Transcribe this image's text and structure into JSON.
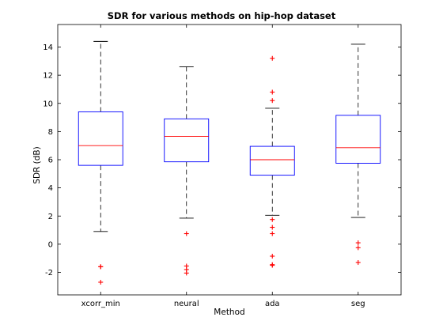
{
  "chart_data": {
    "type": "box",
    "title": "SDR for various methods on hip-hop dataset",
    "xlabel": "Method",
    "ylabel": "SDR (dB)",
    "ylim": [
      -3.6,
      15.6
    ],
    "yticks": [
      -2,
      0,
      2,
      4,
      6,
      8,
      10,
      12,
      14
    ],
    "categories": [
      "xcorr_min",
      "neural",
      "ada",
      "seg"
    ],
    "boxes": [
      {
        "whisker_low": 0.9,
        "q1": 5.6,
        "median": 7.0,
        "q3": 9.4,
        "whisker_high": 14.4,
        "outliers": [
          -1.6,
          -1.6,
          -2.7
        ]
      },
      {
        "whisker_low": 1.85,
        "q1": 5.85,
        "median": 7.65,
        "q3": 8.9,
        "whisker_high": 12.6,
        "outliers": [
          0.75,
          -1.55,
          -1.8,
          -2.05
        ]
      },
      {
        "whisker_low": 2.05,
        "q1": 4.9,
        "median": 6.0,
        "q3": 6.95,
        "whisker_high": 9.65,
        "outliers": [
          13.2,
          10.8,
          10.2,
          1.75,
          1.2,
          0.75,
          -0.85,
          -1.45,
          -1.5
        ]
      },
      {
        "whisker_low": 1.9,
        "q1": 5.75,
        "median": 6.85,
        "q3": 9.15,
        "whisker_high": 14.2,
        "outliers": [
          0.1,
          -0.25,
          -1.3
        ]
      }
    ],
    "colors": {
      "box": "#0000ff",
      "median": "#ff0000",
      "whisker": "#000000",
      "outlier": "#ff0000"
    },
    "grid": false,
    "legend": false
  }
}
